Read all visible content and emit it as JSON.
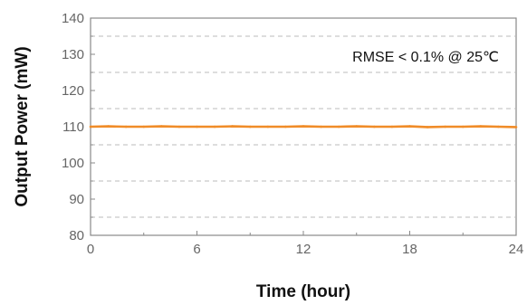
{
  "chart_data": {
    "type": "line",
    "title": "",
    "xlabel": "Time (hour)",
    "ylabel": "Output Power (mW)",
    "xlim": [
      0,
      24
    ],
    "ylim": [
      80,
      140
    ],
    "xticks": [
      0,
      6,
      12,
      18,
      24
    ],
    "yticks": [
      80,
      90,
      100,
      110,
      120,
      130,
      140
    ],
    "y_minor_gridlines": [
      85,
      95,
      105,
      115,
      125,
      135
    ],
    "grid": "dashed horizontal at minor ticks",
    "annotation": "RMSE < 0.1% @ 25℃",
    "series": [
      {
        "color": "#f08c28",
        "x": [
          0,
          1,
          2,
          3,
          4,
          5,
          6,
          7,
          8,
          9,
          10,
          11,
          12,
          13,
          14,
          15,
          16,
          17,
          18,
          19,
          20,
          21,
          22,
          23,
          24
        ],
        "y": [
          110.0,
          110.1,
          110.0,
          110.0,
          110.1,
          110.0,
          110.0,
          110.0,
          110.1,
          110.0,
          110.0,
          110.0,
          110.1,
          110.0,
          110.0,
          110.1,
          110.0,
          110.0,
          110.1,
          109.9,
          110.0,
          110.0,
          110.1,
          110.0,
          109.9
        ]
      }
    ]
  }
}
